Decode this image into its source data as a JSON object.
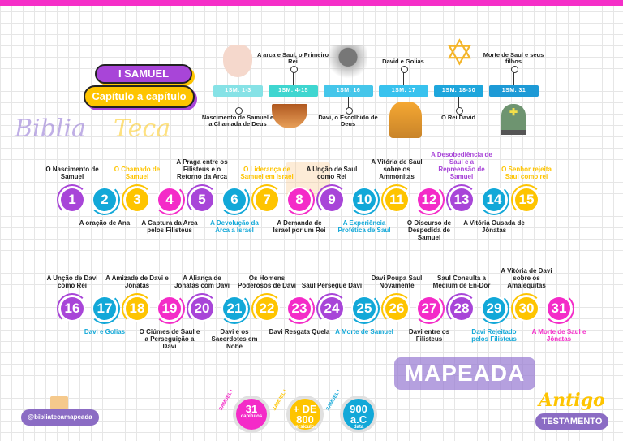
{
  "header": {
    "book": "I SAMUEL",
    "subtitle": "Capítulo a capítulo"
  },
  "timeline": [
    {
      "ref": "1SM. 1-3",
      "label": "Nascimento de Samuel e a Chamada de Deus",
      "pos": "below",
      "color": "#86e2e6",
      "image": "praying-hands"
    },
    {
      "ref": "1SM. 4-15",
      "label": "A arca e Saul, o Primeiro Rei",
      "pos": "above",
      "color": "#3fd6d0",
      "image": "ark"
    },
    {
      "ref": "1SM. 16",
      "label": "Davi, o Escolhido de Deus",
      "pos": "below",
      "color": "#45c6ea",
      "image": "david-statue"
    },
    {
      "ref": "1SM. 17",
      "label": "David e Golias",
      "pos": "above",
      "color": "#38c2ee",
      "image": "goliath"
    },
    {
      "ref": "1SM. 18-30",
      "label": "O Rei David",
      "pos": "below",
      "color": "#1ea6dc",
      "image": "star-of-david"
    },
    {
      "ref": "1SM. 31",
      "label": "Morte de Saul e seus filhos",
      "pos": "above",
      "color": "#1d9ad6",
      "image": "tombstone"
    }
  ],
  "colors": {
    "purple": "#a845d8",
    "blue": "#12a8d8",
    "yellow": "#fec400",
    "magenta": "#f42bc8",
    "dark": "#222222"
  },
  "chapters": [
    {
      "n": "1",
      "color": "purple",
      "label": "O Nascimento de Samuel",
      "label_color": "dark"
    },
    {
      "n": "2",
      "color": "blue",
      "label": "A oração de Ana",
      "label_color": "dark"
    },
    {
      "n": "3",
      "color": "yellow",
      "label": "O Chamado de Samuel",
      "label_color": "yellow"
    },
    {
      "n": "4",
      "color": "magenta",
      "label": "A Captura da Arca pelos Filisteus",
      "label_color": "dark"
    },
    {
      "n": "5",
      "color": "purple",
      "label": "A Praga entre os Filisteus e o Retorno da Arca",
      "label_color": "dark"
    },
    {
      "n": "6",
      "color": "blue",
      "label": "A Devolução da Arca a Israel",
      "label_color": "blue"
    },
    {
      "n": "7",
      "color": "yellow",
      "label": "O Liderança de Samuel em Israel",
      "label_color": "yellow"
    },
    {
      "n": "8",
      "color": "magenta",
      "label": "A Demanda de Israel por um Rei",
      "label_color": "dark"
    },
    {
      "n": "9",
      "color": "purple",
      "label": "A Unção de Saul como Rei",
      "label_color": "dark"
    },
    {
      "n": "10",
      "color": "blue",
      "label": "A Experiência Profética de Saul",
      "label_color": "blue"
    },
    {
      "n": "11",
      "color": "yellow",
      "label": "A Vitória de Saul sobre os Ammonitas",
      "label_color": "dark"
    },
    {
      "n": "12",
      "color": "magenta",
      "label": "O Discurso de Despedida de Samuel",
      "label_color": "dark"
    },
    {
      "n": "13",
      "color": "purple",
      "label": "A Desobediência de Saul e a Repreensão de Samuel",
      "label_color": "purple"
    },
    {
      "n": "14",
      "color": "blue",
      "label": "A Vitória Ousada de Jônatas",
      "label_color": "dark"
    },
    {
      "n": "15",
      "color": "yellow",
      "label": "O Senhor rejeita Saul como rei",
      "label_color": "yellow"
    },
    {
      "n": "16",
      "color": "purple",
      "label": "A Unção de Davi como Rei",
      "label_color": "dark"
    },
    {
      "n": "17",
      "color": "blue",
      "label": "Davi e Golias",
      "label_color": "blue"
    },
    {
      "n": "18",
      "color": "yellow",
      "label": "A Amizade de Davi e Jônatas",
      "label_color": "dark"
    },
    {
      "n": "19",
      "color": "magenta",
      "label": "O Ciúmes de Saul e a Perseguição a Davi",
      "label_color": "dark"
    },
    {
      "n": "20",
      "color": "purple",
      "label": "A Aliança de Jônatas com Davi",
      "label_color": "dark"
    },
    {
      "n": "21",
      "color": "blue",
      "label": "Davi e os Sacerdotes em Nobe",
      "label_color": "dark"
    },
    {
      "n": "22",
      "color": "yellow",
      "label": "Os Homens Poderosos de Davi",
      "label_color": "dark"
    },
    {
      "n": "23",
      "color": "magenta",
      "label": "Davi Resgata Quela",
      "label_color": "dark"
    },
    {
      "n": "24",
      "color": "purple",
      "label": "Saul Persegue Davi",
      "label_color": "dark"
    },
    {
      "n": "25",
      "color": "blue",
      "label": "A Morte de Samuel",
      "label_color": "blue"
    },
    {
      "n": "26",
      "color": "yellow",
      "label": "Davi Poupa Saul Novamente",
      "label_color": "dark"
    },
    {
      "n": "27",
      "color": "magenta",
      "label": "Davi entre os Filisteus",
      "label_color": "dark"
    },
    {
      "n": "28",
      "color": "purple",
      "label": "Saul Consulta a Médium de En-Dor",
      "label_color": "dark"
    },
    {
      "n": "29",
      "color": "blue",
      "label": "Davi Rejeitado pelos Filisteus",
      "label_color": "blue"
    },
    {
      "n": "30",
      "color": "yellow",
      "label": "A Vitória de Davi sobre os Amalequitas",
      "label_color": "dark"
    },
    {
      "n": "31",
      "color": "magenta",
      "label": "A Morte de Saul e Jônatas",
      "label_color": "magenta"
    }
  ],
  "watermark": {
    "line1": "Biblia",
    "line2": "Teca",
    "line3": "MAPEADA"
  },
  "footer": {
    "handle": "@bibliatecamapeada",
    "stats": [
      {
        "tag": "SAMUEL I",
        "big": "31",
        "small": "capítulos",
        "color": "#f42bc8"
      },
      {
        "tag": "SAMUEL I",
        "big": "+ DE 800",
        "small": "versículos",
        "color": "#fec400"
      },
      {
        "tag": "SAMUEL I",
        "big": "900 a.C",
        "small": "data",
        "color": "#12a8d8"
      }
    ],
    "testament_top": "Antigo",
    "testament_bottom": "TESTAMENTO"
  }
}
